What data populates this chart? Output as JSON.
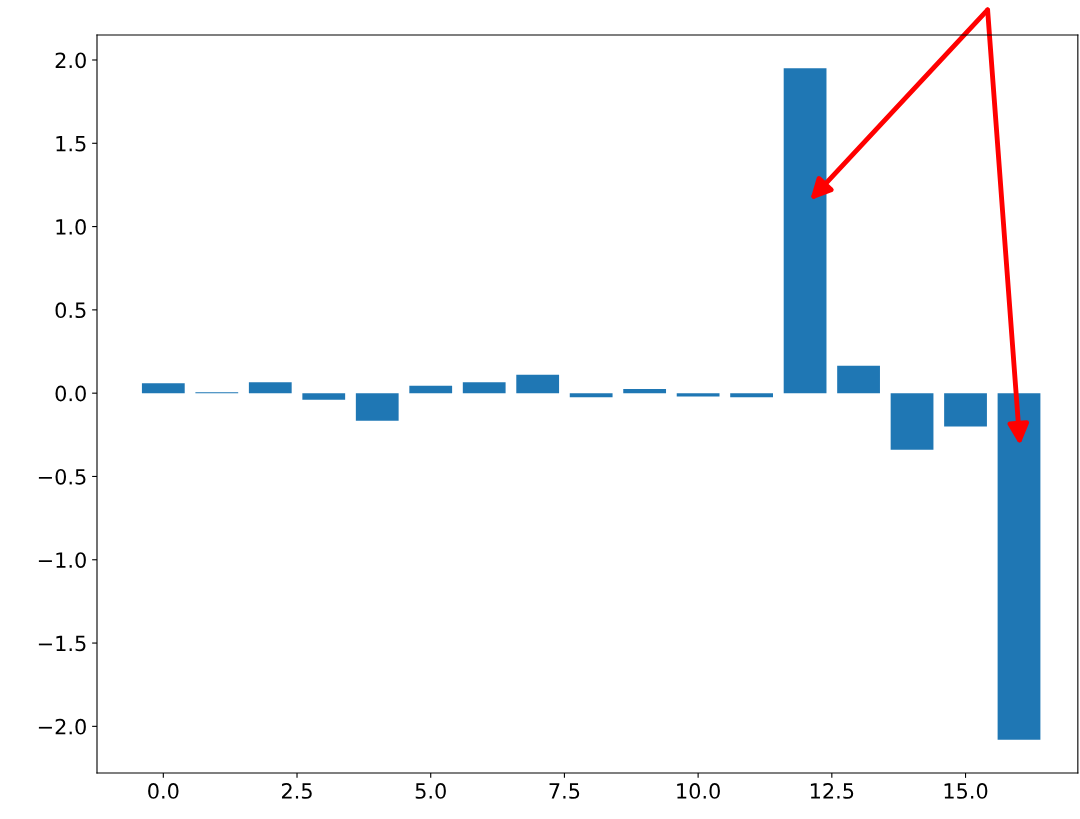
{
  "chart_data": {
    "type": "bar",
    "x": [
      0,
      1,
      2,
      3,
      4,
      5,
      6,
      7,
      8,
      9,
      10,
      11,
      12,
      13,
      14,
      15,
      16
    ],
    "values": [
      0.06,
      0.005,
      0.065,
      -0.04,
      -0.165,
      0.045,
      0.065,
      0.11,
      -0.025,
      0.025,
      -0.02,
      -0.025,
      1.95,
      0.165,
      -0.34,
      -0.2,
      -2.08
    ],
    "color": "#1f77b4",
    "xlim": [
      -1.24,
      17.1
    ],
    "ylim": [
      -2.28,
      2.15
    ],
    "xticks": [
      {
        "value": 0,
        "label": "0.0"
      },
      {
        "value": 2.5,
        "label": "2.5"
      },
      {
        "value": 5,
        "label": "5.0"
      },
      {
        "value": 7.5,
        "label": "7.5"
      },
      {
        "value": 10,
        "label": "10.0"
      },
      {
        "value": 12.5,
        "label": "12.5"
      },
      {
        "value": 15,
        "label": "15.0"
      }
    ],
    "yticks": [
      {
        "value": -2,
        "label": "−2.0"
      },
      {
        "value": -1.5,
        "label": "−1.5"
      },
      {
        "value": -1,
        "label": "−1.0"
      },
      {
        "value": -0.5,
        "label": "−0.5"
      },
      {
        "value": 0,
        "label": "0.0"
      },
      {
        "value": 0.5,
        "label": "0.5"
      },
      {
        "value": 1,
        "label": "1.0"
      },
      {
        "value": 1.5,
        "label": "1.5"
      },
      {
        "value": 2,
        "label": "2.0"
      }
    ],
    "grid": false,
    "legend": false
  }
}
